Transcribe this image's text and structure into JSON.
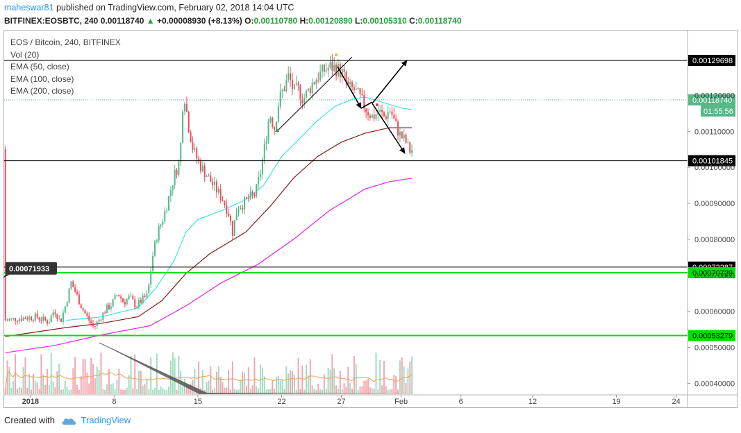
{
  "header": {
    "author": "maheswar81",
    "published_text": " published on TradingView.com, February 02, 2018 14:04 UTC",
    "symbol": "BITFINEX:EOSBTC, 240",
    "last": "0.00118740",
    "change": "+0.00008930 (+8.13%)",
    "o_label": "O:",
    "o_value": "0.00110780",
    "h_label": "H:",
    "h_value": "0.00120890",
    "l_label": "L:",
    "l_value": "0.00105310",
    "c_label": "C:",
    "c_value": "0.00118740"
  },
  "legend": {
    "title": "EOS / Bitcoin, 240, BITFINEX",
    "vol": "Vol (20)",
    "ema50": "EMA (50, close)",
    "ema100": "EMA (100, close)",
    "ema200": "EMA (200, close)"
  },
  "footer": {
    "created": "Created with",
    "brand": "TradingView"
  },
  "colors": {
    "up": "#53b987",
    "down": "#eb4d5c",
    "ema50": "#3fe0f0",
    "ema100": "#8b1a1a",
    "ema200": "#e91ee9",
    "hline_green": "#00e000",
    "vol_up": "#a3dcc0",
    "vol_down": "#f2a7b0",
    "vol_ma": "#f0a050"
  },
  "chart_data": {
    "type": "candlestick",
    "y_range": [
      0.00037,
      0.00138
    ],
    "price_ticks": [
      "0.00040000",
      "0.00050000",
      "0.00060000",
      "0.00070000",
      "0.00080000",
      "0.00090000",
      "0.00100000",
      "0.00110000",
      "0.00120000"
    ],
    "x_range_days": [
      -2.2,
      28.6
    ],
    "x_ticks": [
      {
        "label": "2018",
        "day": 0
      },
      {
        "label": "8",
        "day": 7
      },
      {
        "label": "15",
        "day": 14
      },
      {
        "label": "22",
        "day": 21
      },
      {
        "label": "27",
        "day": 26
      },
      {
        "label": "Feb",
        "day": 31
      },
      {
        "label": "6",
        "day": 36
      },
      {
        "label": "12",
        "day": 42
      },
      {
        "label": "19",
        "day": 49
      },
      {
        "label": "24",
        "day": 54
      }
    ],
    "anchors": [
      {
        "d": -2.1,
        "p": 0.000575
      },
      {
        "d": -1.0,
        "p": 0.00058
      },
      {
        "d": 0.5,
        "p": 0.000585
      },
      {
        "d": 1.5,
        "p": 0.00057
      },
      {
        "d": 2.0,
        "p": 0.000605
      },
      {
        "d": 2.5,
        "p": 0.00057
      },
      {
        "d": 3.0,
        "p": 0.000625
      },
      {
        "d": 3.4,
        "p": 0.00068
      },
      {
        "d": 3.8,
        "p": 0.00065
      },
      {
        "d": 4.3,
        "p": 0.00061
      },
      {
        "d": 4.8,
        "p": 0.00058
      },
      {
        "d": 5.3,
        "p": 0.000555
      },
      {
        "d": 5.8,
        "p": 0.00058
      },
      {
        "d": 6.3,
        "p": 0.000605
      },
      {
        "d": 6.8,
        "p": 0.00062
      },
      {
        "d": 7.3,
        "p": 0.00065
      },
      {
        "d": 7.8,
        "p": 0.000625
      },
      {
        "d": 8.3,
        "p": 0.00064
      },
      {
        "d": 8.8,
        "p": 0.000615
      },
      {
        "d": 9.3,
        "p": 0.00063
      },
      {
        "d": 9.8,
        "p": 0.000645
      },
      {
        "d": 10.2,
        "p": 0.00075
      },
      {
        "d": 10.6,
        "p": 0.000815
      },
      {
        "d": 11.1,
        "p": 0.00086
      },
      {
        "d": 11.6,
        "p": 0.00092
      },
      {
        "d": 12.0,
        "p": 0.000975
      },
      {
        "d": 12.5,
        "p": 0.00102
      },
      {
        "d": 12.8,
        "p": 0.00122
      },
      {
        "d": 13.2,
        "p": 0.00112
      },
      {
        "d": 13.6,
        "p": 0.00105
      },
      {
        "d": 14.1,
        "p": 0.00101
      },
      {
        "d": 14.6,
        "p": 0.000985
      },
      {
        "d": 15.1,
        "p": 0.00096
      },
      {
        "d": 15.6,
        "p": 0.000935
      },
      {
        "d": 16.1,
        "p": 0.00091
      },
      {
        "d": 16.6,
        "p": 0.00087
      },
      {
        "d": 16.9,
        "p": 0.00082
      },
      {
        "d": 17.3,
        "p": 0.00089
      },
      {
        "d": 17.8,
        "p": 0.0009
      },
      {
        "d": 18.3,
        "p": 0.000915
      },
      {
        "d": 18.8,
        "p": 0.000925
      },
      {
        "d": 19.2,
        "p": 0.00098
      },
      {
        "d": 19.6,
        "p": 0.00106
      },
      {
        "d": 20.0,
        "p": 0.00115
      },
      {
        "d": 20.4,
        "p": 0.00111
      },
      {
        "d": 20.8,
        "p": 0.00119
      },
      {
        "d": 21.2,
        "p": 0.00122
      },
      {
        "d": 21.6,
        "p": 0.001255
      },
      {
        "d": 22.0,
        "p": 0.00121
      },
      {
        "d": 22.4,
        "p": 0.001215
      },
      {
        "d": 22.8,
        "p": 0.00119
      },
      {
        "d": 23.2,
        "p": 0.00121
      },
      {
        "d": 23.6,
        "p": 0.001235
      },
      {
        "d": 24.1,
        "p": 0.001255
      },
      {
        "d": 24.6,
        "p": 0.00127
      },
      {
        "d": 25.1,
        "p": 0.00128
      },
      {
        "d": 25.6,
        "p": 0.001275
      },
      {
        "d": 26.1,
        "p": 0.00126
      },
      {
        "d": 26.6,
        "p": 0.00122
      },
      {
        "d": 27.1,
        "p": 0.001215
      },
      {
        "d": 27.6,
        "p": 0.00119
      },
      {
        "d": 28.1,
        "p": 0.00116
      },
      {
        "d": 28.6,
        "p": 0.00114
      },
      {
        "d": 29.1,
        "p": 0.001155
      },
      {
        "d": 29.6,
        "p": 0.00114
      },
      {
        "d": 30.1,
        "p": 0.00116
      },
      {
        "d": 30.5,
        "p": 0.00112
      },
      {
        "d": 30.9,
        "p": 0.00109
      },
      {
        "d": 31.4,
        "p": 0.00107
      },
      {
        "d": 31.7,
        "p": 0.001045
      },
      {
        "d": 31.95,
        "p": 0.00105
      }
    ],
    "ema": [
      {
        "name": "EMA (50, close)",
        "key": "ema50",
        "points": [
          {
            "d": 3,
            "p": 0.000575
          },
          {
            "d": 6,
            "p": 0.000585
          },
          {
            "d": 9,
            "p": 0.00061
          },
          {
            "d": 10.5,
            "p": 0.000665
          },
          {
            "d": 12,
            "p": 0.00074
          },
          {
            "d": 13,
            "p": 0.00082
          },
          {
            "d": 14,
            "p": 0.000855
          },
          {
            "d": 16,
            "p": 0.00088
          },
          {
            "d": 18,
            "p": 0.00091
          },
          {
            "d": 19.5,
            "p": 0.00095
          },
          {
            "d": 21,
            "p": 0.00103
          },
          {
            "d": 22.5,
            "p": 0.00108
          },
          {
            "d": 24,
            "p": 0.00113
          },
          {
            "d": 25.5,
            "p": 0.00117
          },
          {
            "d": 27,
            "p": 0.00119
          },
          {
            "d": 28,
            "p": 0.001195
          },
          {
            "d": 29.5,
            "p": 0.00118
          },
          {
            "d": 31,
            "p": 0.001165
          },
          {
            "d": 31.9,
            "p": 0.00116
          }
        ]
      },
      {
        "name": "EMA (100, close)",
        "key": "ema100",
        "points": [
          {
            "d": -2.1,
            "p": 0.00053
          },
          {
            "d": 3,
            "p": 0.000555
          },
          {
            "d": 6,
            "p": 0.000567
          },
          {
            "d": 9,
            "p": 0.000585
          },
          {
            "d": 11,
            "p": 0.00063
          },
          {
            "d": 13,
            "p": 0.000705
          },
          {
            "d": 15,
            "p": 0.00076
          },
          {
            "d": 18,
            "p": 0.00082
          },
          {
            "d": 20,
            "p": 0.00089
          },
          {
            "d": 22,
            "p": 0.00097
          },
          {
            "d": 24,
            "p": 0.00103
          },
          {
            "d": 26,
            "p": 0.00107
          },
          {
            "d": 28,
            "p": 0.001095
          },
          {
            "d": 30,
            "p": 0.00111
          },
          {
            "d": 31.9,
            "p": 0.00111
          }
        ]
      },
      {
        "name": "EMA (200, close)",
        "key": "ema200",
        "points": [
          {
            "d": -2.1,
            "p": 0.000485
          },
          {
            "d": 2,
            "p": 0.000505
          },
          {
            "d": 6,
            "p": 0.000535
          },
          {
            "d": 10,
            "p": 0.00056
          },
          {
            "d": 13,
            "p": 0.000615
          },
          {
            "d": 16,
            "p": 0.00068
          },
          {
            "d": 19,
            "p": 0.00073
          },
          {
            "d": 22,
            "p": 0.0008
          },
          {
            "d": 25,
            "p": 0.00088
          },
          {
            "d": 28,
            "p": 0.00094
          },
          {
            "d": 30,
            "p": 0.00096
          },
          {
            "d": 31.95,
            "p": 0.00097
          }
        ]
      }
    ],
    "horizontal_lines": [
      {
        "price": 0.00129698,
        "label": "0.00129698",
        "color": "black"
      },
      {
        "price": 0.00101845,
        "label": "0.00101845",
        "color": "black"
      },
      {
        "price": 0.00072287,
        "label": "0.00072287",
        "color": "black"
      },
      {
        "price": 0.00070729,
        "label": "0.00070729",
        "color": "green"
      },
      {
        "price": 0.00053279,
        "label": "0.00053279",
        "color": "green"
      }
    ],
    "last_price": {
      "price": 0.0011874,
      "label": "0.00118740",
      "countdown": "01:55:56"
    },
    "crosshair_label": {
      "price": 0.00071933,
      "label": "0.00071933"
    }
  }
}
